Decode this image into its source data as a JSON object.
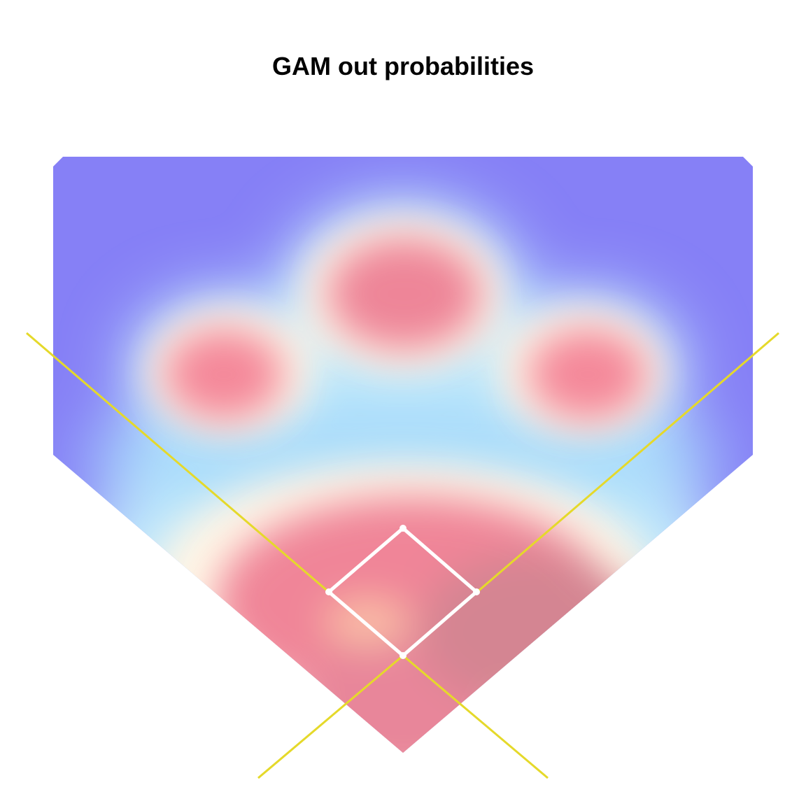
{
  "chart_data": {
    "type": "heatmap",
    "title": "GAM out probabilities",
    "xlabel": "",
    "ylabel": "",
    "legend": "none",
    "grid": false,
    "colors": {
      "low": "#8680f6",
      "mid_low": "#a8e0fb",
      "mid": "#fffcec",
      "mid_high": "#fbc8b0",
      "high": "#f08598",
      "max": "#cc8492",
      "foul_lines": "#e5d92a",
      "bases": "#ffffff"
    },
    "description_fields": {
      "hotspots": [
        {
          "name": "left field",
          "level": 0.9
        },
        {
          "name": "center field",
          "level": 0.93
        },
        {
          "name": "right field",
          "level": 0.9
        },
        {
          "name": "infield",
          "level": 0.95
        }
      ]
    }
  }
}
